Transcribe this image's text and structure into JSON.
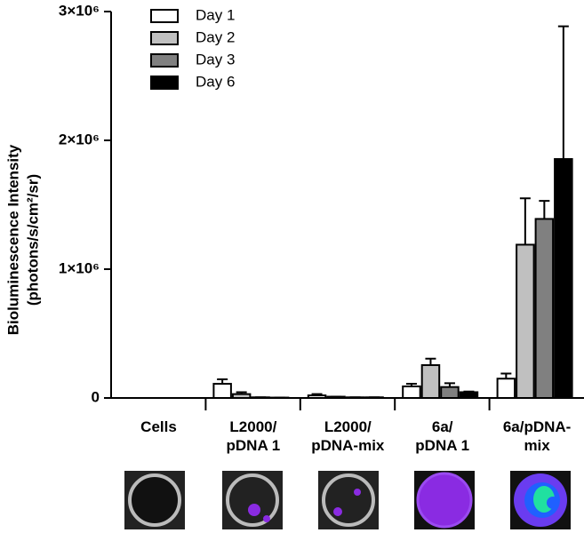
{
  "chart_data": {
    "type": "bar",
    "y_label": "Bioluminescence Intensity",
    "y_label_2": "(photons/s/cm²/sr)",
    "categories": [
      "Cells",
      "L2000/\npDNA 1",
      "L2000/\npDNA-mix",
      "6a/\npDNA  1",
      "6a/pDNA-\nmix"
    ],
    "series": [
      {
        "name": "Day 1",
        "color": "#ffffff",
        "values": [
          0,
          110000,
          20000,
          90000,
          150000
        ],
        "errors": [
          0,
          35000,
          10000,
          20000,
          40000
        ]
      },
      {
        "name": "Day 2",
        "color": "#c0c0c0",
        "values": [
          0,
          30000,
          10000,
          255000,
          1190000
        ],
        "errors": [
          0,
          15000,
          0,
          50000,
          360000
        ]
      },
      {
        "name": "Day 3",
        "color": "#808080",
        "values": [
          0,
          5000,
          5000,
          85000,
          1390000
        ],
        "errors": [
          0,
          0,
          0,
          30000,
          140000
        ]
      },
      {
        "name": "Day 6",
        "color": "#000000",
        "values": [
          0,
          3000,
          5000,
          45000,
          1855000
        ],
        "errors": [
          0,
          0,
          0,
          5000,
          1030000
        ]
      }
    ],
    "ylim": [
      0,
      3000000
    ],
    "yticks": [
      0,
      {
        "value": 1000000,
        "label": "1×10⁶"
      },
      {
        "value": 2000000,
        "label": "2×10⁶"
      },
      {
        "value": 3000000,
        "label": "3×10⁶"
      }
    ],
    "legend": "upper-left"
  }
}
